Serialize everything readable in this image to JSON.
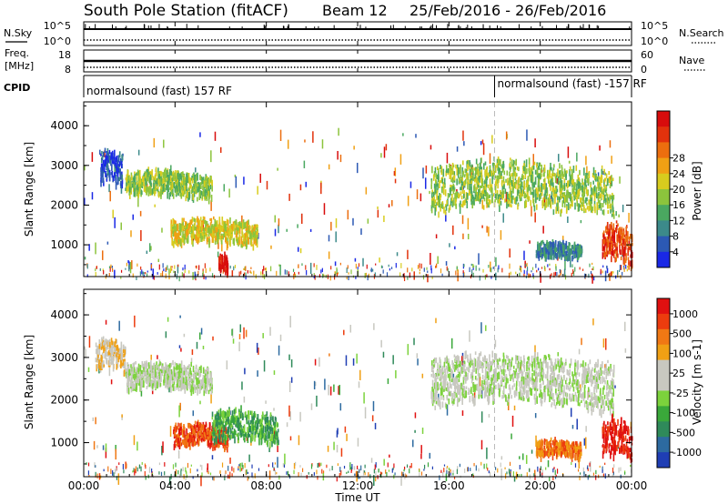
{
  "header": {
    "station": "South Pole Station (fitACF)",
    "beam": "Beam 12",
    "date_range": "25/Feb/2016 - 26/Feb/2016"
  },
  "parameter_panels": {
    "nsky_label": "N.Sky",
    "nsearch_label": "N.Search",
    "noise_ticks": [
      "10^5",
      "10^0"
    ],
    "freq_label": "Freq.",
    "freq_unit": "[MHz]",
    "freq_ticks": [
      "18",
      "8"
    ],
    "nave_label": "Nave",
    "nave_ticks": [
      "60",
      "0"
    ],
    "cpid_label": "CPID",
    "cpid_segments": [
      {
        "label": "normalsound (fast) 157 RF",
        "start_hour": 0
      },
      {
        "label": "normalsound (fast) -157 RF",
        "start_hour": 18
      }
    ]
  },
  "chart_data": [
    {
      "type": "heatmap",
      "name": "power",
      "ylabel": "Slant Range [km]",
      "y_ticks": [
        1000,
        2000,
        3000,
        4000
      ],
      "ylim": [
        200,
        4600
      ],
      "colorbar_title": "Power [dB]",
      "colorbar_ticks": [
        4,
        8,
        12,
        16,
        20,
        24,
        28
      ],
      "colors": [
        "#1a28e6",
        "#2c59b4",
        "#3c8a8a",
        "#4aa860",
        "#8cc43c",
        "#d8cc1e",
        "#f0a014",
        "#ec6e0e",
        "#e2320c",
        "#d80c0c"
      ],
      "regions": [
        {
          "t0": 0.7,
          "t1": 1.7,
          "r0": 2500,
          "r1": 3450,
          "level": 1
        },
        {
          "t0": 1.8,
          "t1": 5.6,
          "r0": 2200,
          "r1": 2900,
          "level": 4
        },
        {
          "t0": 3.8,
          "t1": 7.6,
          "r0": 1000,
          "r1": 1700,
          "level": 5
        },
        {
          "t0": 5.9,
          "t1": 6.3,
          "r0": 300,
          "r1": 800,
          "level": 9
        },
        {
          "t0": 15.2,
          "t1": 23.2,
          "r0": 1800,
          "r1": 3100,
          "level": 4
        },
        {
          "t0": 19.8,
          "t1": 21.8,
          "r0": 700,
          "r1": 1100,
          "level": 2
        },
        {
          "t0": 22.7,
          "t1": 24.0,
          "r0": 500,
          "r1": 1600,
          "level": 8
        }
      ]
    },
    {
      "type": "heatmap",
      "name": "velocity",
      "ylabel": "Slant Range [km]",
      "y_ticks": [
        1000,
        2000,
        3000,
        4000
      ],
      "ylim": [
        200,
        4600
      ],
      "colorbar_title": "Velocity [m s-1]",
      "colorbar_ticks": [
        "1000",
        "500",
        "100",
        "25",
        "-25",
        "-100",
        "-500",
        "-1000"
      ],
      "colors": [
        "#1f3eb4",
        "#2d6aa0",
        "#2f8a5a",
        "#3aa83a",
        "#7cd23c",
        "#c8c8c0",
        "#c8c8c0",
        "#f0a014",
        "#f07814",
        "#ec3c0e",
        "#e01010"
      ],
      "regions": [
        {
          "t0": 0.5,
          "t1": 1.8,
          "r0": 2700,
          "r1": 3450,
          "level": 6
        },
        {
          "t0": 1.8,
          "t1": 5.6,
          "r0": 2200,
          "r1": 2900,
          "level": 5
        },
        {
          "t0": 3.9,
          "t1": 6.3,
          "r0": 900,
          "r1": 1500,
          "level": 9
        },
        {
          "t0": 5.6,
          "t1": 8.5,
          "r0": 1000,
          "r1": 1800,
          "level": 3
        },
        {
          "t0": 15.2,
          "t1": 23.2,
          "r0": 1800,
          "r1": 3100,
          "level": 5
        },
        {
          "t0": 19.8,
          "t1": 21.8,
          "r0": 700,
          "r1": 1100,
          "level": 8
        },
        {
          "t0": 22.7,
          "t1": 24.0,
          "r0": 600,
          "r1": 1600,
          "level": 10
        }
      ]
    }
  ],
  "x_axis": {
    "label": "Time UT",
    "ticks": [
      "00:00",
      "04:00",
      "08:00",
      "12:00",
      "16:00",
      "20:00",
      "00:00"
    ],
    "range_hours": [
      0,
      24
    ]
  }
}
